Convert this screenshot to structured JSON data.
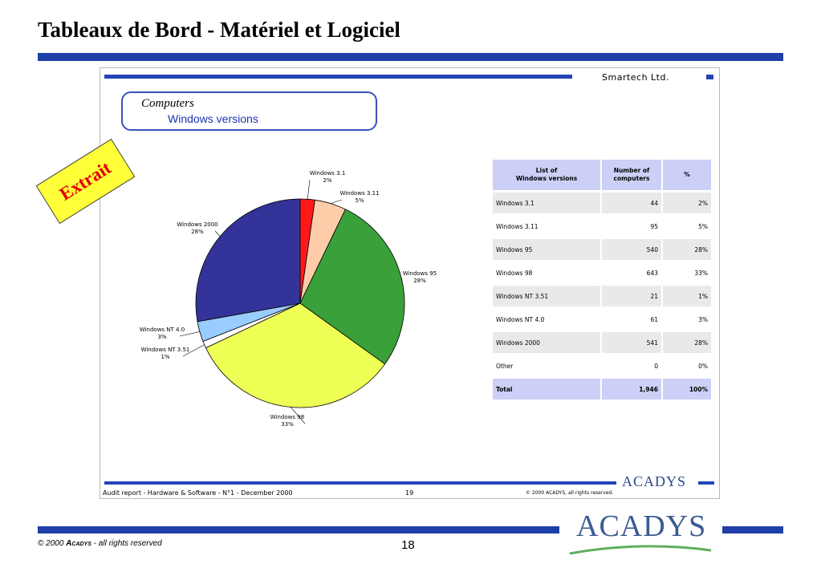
{
  "slide": {
    "title": "Tableaux de Bord - Matériel et Logiciel",
    "page_number": "18",
    "copyright_prefix": "© 2000 ",
    "copyright_brand": "Acadys",
    "copyright_suffix": " - all rights reserved",
    "logo_text": "ACADYS",
    "stamp_text": "Extrait"
  },
  "report": {
    "company": "Smartech Ltd.",
    "section_title": "Computers",
    "section_subtitle": "Windows versions",
    "footer_left": "Audit report - Hardware & Software - N°1 - December 2000",
    "footer_page": "19",
    "footer_right": "© 2000 ACADYS, all rights reserved.",
    "logo_text": "ACADYS"
  },
  "colors": {
    "accent_blue": "#1f3ea8",
    "header_cell": "#ccd0f7"
  },
  "chart_data": {
    "type": "pie",
    "title": "",
    "series": [
      {
        "name": "Windows 3.1",
        "value": 44,
        "label_pct": "2%",
        "color": "#ff1a1a"
      },
      {
        "name": "Windows 3.11",
        "value": 95,
        "label_pct": "5%",
        "color": "#ffccaa"
      },
      {
        "name": "Windows 95",
        "value": 540,
        "label_pct": "28%",
        "color": "#3aa03a"
      },
      {
        "name": "Windows 98",
        "value": 643,
        "label_pct": "33%",
        "color": "#eeff55"
      },
      {
        "name": "Windows NT 3.51",
        "value": 21,
        "label_pct": "1%",
        "color": "#ffffff"
      },
      {
        "name": "Windows NT 4.0",
        "value": 61,
        "label_pct": "3%",
        "color": "#99ccff"
      },
      {
        "name": "Windows 2000",
        "value": 541,
        "label_pct": "28%",
        "color": "#333399"
      }
    ]
  },
  "table": {
    "headers": [
      "List of\nWindows versions",
      "Number of\ncomputers",
      "%"
    ],
    "rows": [
      {
        "name": "Windows 3.1",
        "count": "44",
        "pct": "2%"
      },
      {
        "name": "Windows 3.11",
        "count": "95",
        "pct": "5%"
      },
      {
        "name": "Windows 95",
        "count": "540",
        "pct": "28%"
      },
      {
        "name": "Windows 98",
        "count": "643",
        "pct": "33%"
      },
      {
        "name": "Windows NT 3.51",
        "count": "21",
        "pct": "1%"
      },
      {
        "name": "Windows NT 4.0",
        "count": "61",
        "pct": "3%"
      },
      {
        "name": "Windows 2000",
        "count": "541",
        "pct": "28%"
      },
      {
        "name": "Other",
        "count": "0",
        "pct": "0%"
      }
    ],
    "total": {
      "name": "Total",
      "count": "1,946",
      "pct": "100%"
    }
  }
}
